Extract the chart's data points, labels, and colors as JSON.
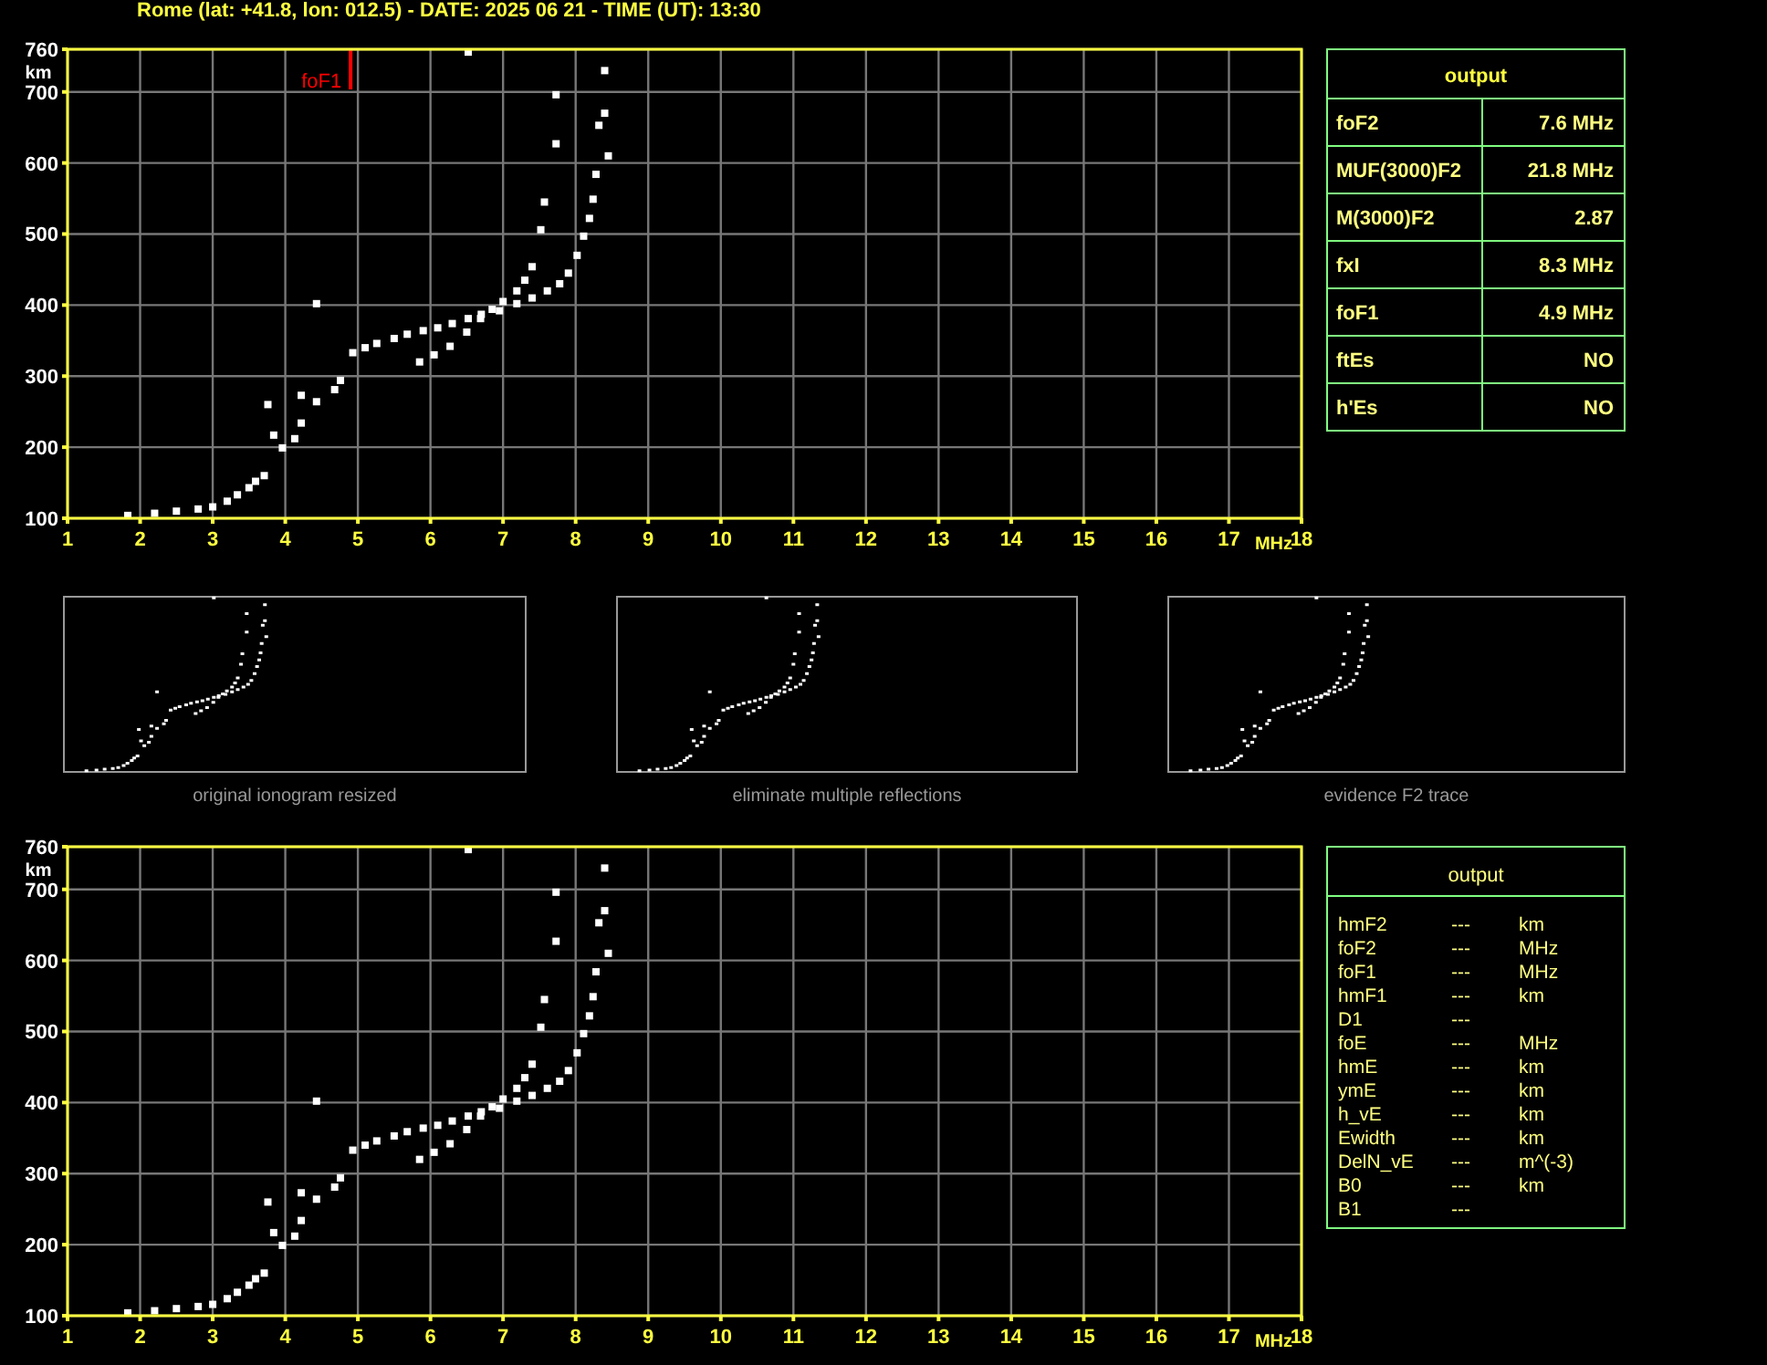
{
  "chart_data": [
    {
      "type": "scatter",
      "title": "Rome (lat: +41.8, lon: 012.5) - DATE: 2025 06 21 - TIME (UT): 13:30",
      "xlabel": "MHz",
      "ylabel": "km",
      "xlim": [
        1,
        18
      ],
      "ylim": [
        100,
        760
      ],
      "xticks": [
        1,
        2,
        3,
        4,
        5,
        6,
        7,
        8,
        9,
        10,
        11,
        12,
        13,
        14,
        15,
        16,
        17,
        18
      ],
      "yticks": [
        100,
        200,
        300,
        400,
        500,
        600,
        700,
        760
      ],
      "grid": true,
      "marker": "square",
      "annotations": [
        "original ionogram resized",
        "eliminate multiple reflections",
        "evidence F2 trace"
      ],
      "ref_lines": [
        {
          "axis": "x",
          "value": 4.9,
          "label": "foF1",
          "color": "#ff0000"
        }
      ],
      "series": [
        {
          "color": "#ffffff",
          "x": [
            1.83,
            2.2,
            2.5,
            2.8,
            3.0,
            3.2,
            3.34,
            3.5,
            3.59,
            3.71,
            3.76,
            3.84,
            3.96,
            4.13,
            4.22,
            4.22,
            4.43,
            4.43,
            4.68,
            4.76,
            4.93,
            5.1,
            5.26,
            5.5,
            5.68,
            5.9,
            6.1,
            6.3,
            6.52,
            6.7,
            6.85,
            7.0,
            7.19,
            7.3,
            7.4,
            7.52,
            7.57,
            7.73,
            7.73,
            6.52
          ],
          "values": [
            104,
            107,
            110,
            113,
            116,
            124,
            133,
            143,
            152,
            160,
            260,
            217,
            199,
            212,
            234,
            273,
            264,
            402,
            281,
            294,
            333,
            340,
            346,
            353,
            359,
            364,
            368,
            374,
            381,
            387,
            394,
            405,
            420,
            435,
            454,
            506,
            545,
            627,
            696,
            756
          ]
        },
        {
          "color": "#ffffff",
          "x": [
            5.85,
            6.05,
            6.27,
            6.5,
            6.69,
            6.95,
            7.19,
            7.4,
            7.61,
            7.78,
            7.9,
            8.02,
            8.11,
            8.19,
            8.24,
            8.28,
            8.32,
            8.4,
            8.45,
            8.4
          ],
          "values": [
            320,
            330,
            342,
            362,
            381,
            392,
            402,
            410,
            420,
            430,
            445,
            470,
            497,
            522,
            549,
            584,
            653,
            670,
            610,
            730
          ]
        }
      ]
    },
    {
      "type": "other",
      "title": "output",
      "categories": [
        "foF2",
        "MUF(3000)F2",
        "M(3000)F2",
        "fxI",
        "foF1",
        "ftEs",
        "h'Es"
      ],
      "value_labels": [
        "7.6 MHz",
        "21.8 MHz",
        "2.87",
        "8.3 MHz",
        "4.9 MHz",
        "NO",
        "NO"
      ],
      "color": "#ffff80"
    },
    {
      "type": "scatter",
      "xlabel": "MHz",
      "ylabel": "km",
      "xlim": [
        1,
        18
      ],
      "ylim": [
        100,
        760
      ],
      "xticks": [
        1,
        2,
        3,
        4,
        5,
        6,
        7,
        8,
        9,
        10,
        11,
        12,
        13,
        14,
        15,
        16,
        17,
        18
      ],
      "yticks": [
        100,
        200,
        300,
        400,
        500,
        600,
        700,
        760
      ],
      "grid": true,
      "marker": "square",
      "series": [
        {
          "color": "#ffffff",
          "x": [
            1.83,
            2.2,
            2.5,
            2.8,
            3.0,
            3.2,
            3.34,
            3.5,
            3.59,
            3.71,
            3.76,
            3.84,
            3.96,
            4.13,
            4.22,
            4.22,
            4.43,
            4.43,
            4.68,
            4.76,
            4.93,
            5.1,
            5.26,
            5.5,
            5.68,
            5.9,
            6.1,
            6.3,
            6.52,
            6.7,
            6.85,
            7.0,
            7.19,
            7.3,
            7.4,
            7.52,
            7.57,
            7.73,
            7.73,
            6.52
          ],
          "values": [
            104,
            107,
            110,
            113,
            116,
            124,
            133,
            143,
            152,
            160,
            260,
            217,
            199,
            212,
            234,
            273,
            264,
            402,
            281,
            294,
            333,
            340,
            346,
            353,
            359,
            364,
            368,
            374,
            381,
            387,
            394,
            405,
            420,
            435,
            454,
            506,
            545,
            627,
            696,
            756
          ]
        },
        {
          "color": "#ffffff",
          "x": [
            5.85,
            6.05,
            6.27,
            6.5,
            6.69,
            6.95,
            7.19,
            7.4,
            7.61,
            7.78,
            7.9,
            8.02,
            8.11,
            8.19,
            8.24,
            8.28,
            8.32,
            8.4,
            8.45,
            8.4
          ],
          "values": [
            320,
            330,
            342,
            362,
            381,
            392,
            402,
            410,
            420,
            430,
            445,
            470,
            497,
            522,
            549,
            584,
            653,
            670,
            610,
            730
          ]
        }
      ]
    },
    {
      "type": "other",
      "title": "output",
      "color": "#ffff80",
      "categories": [
        "hmF2",
        "foF2",
        "foF1",
        "hmF1",
        "D1",
        "foE",
        "hmE",
        "ymE",
        "h_vE",
        "Ewidth",
        "DelN_vE",
        "B0",
        "B1"
      ],
      "value_labels": [
        "---",
        "---",
        "---",
        "---",
        "---",
        "---",
        "---",
        "---",
        "---",
        "---",
        "---",
        "---",
        "---"
      ],
      "y2_categories": [
        "km",
        "MHz",
        "MHz",
        "km",
        null,
        "MHz",
        "km",
        "km",
        "km",
        "km",
        "m^(-3)",
        "km",
        null
      ]
    }
  ]
}
